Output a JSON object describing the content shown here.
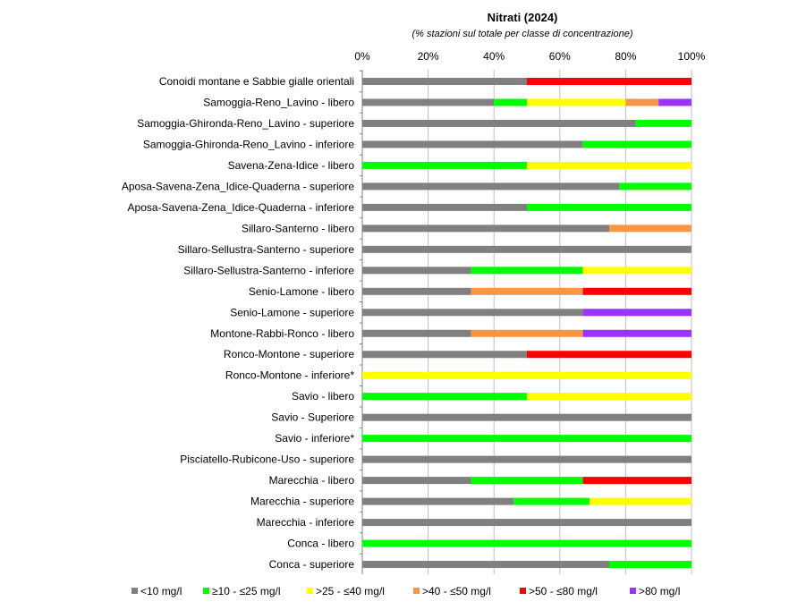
{
  "chart_data": {
    "type": "bar",
    "orientation": "horizontal",
    "stacked": true,
    "title": "Nitrati (2024)",
    "subtitle": "(% stazioni sul totale per classe di concentrazione)",
    "xlim": [
      0,
      100
    ],
    "x_ticks": [
      "0%",
      "20%",
      "40%",
      "60%",
      "80%",
      "100%"
    ],
    "x_tick_values": [
      0,
      20,
      40,
      60,
      80,
      100
    ],
    "legend_position": "bottom",
    "grid": "vertical",
    "categories": [
      "Conoidi montane e Sabbie gialle orientali",
      "Samoggia-Reno_Lavino - libero",
      "Samoggia-Ghironda-Reno_Lavino - superiore",
      "Samoggia-Ghironda-Reno_Lavino - inferiore",
      "Savena-Zena-Idice - libero",
      "Aposa-Savena-Zena_Idice-Quaderna - superiore",
      "Aposa-Savena-Zena_Idice-Quaderna - inferiore",
      "Sillaro-Santerno - libero",
      "Sillaro-Sellustra-Santerno - superiore",
      "Sillaro-Sellustra-Santerno - inferiore",
      "Senio-Lamone - libero",
      "Senio-Lamone - superiore",
      "Montone-Rabbi-Ronco - libero",
      "Ronco-Montone - superiore",
      "Ronco-Montone - inferiore*",
      "Savio - libero",
      "Savio - Superiore",
      "Savio - inferiore*",
      "Pisciatello-Rubicone-Uso - superiore",
      "Marecchia - libero",
      "Marecchia - superiore",
      "Marecchia - inferiore",
      "Conca - libero",
      "Conca - superiore"
    ],
    "series": [
      {
        "name": "<10 mg/l",
        "color": "#808080",
        "values": [
          50,
          40,
          83,
          67,
          0,
          78,
          50,
          75,
          100,
          33,
          33,
          67,
          33,
          50,
          0,
          0,
          100,
          0,
          100,
          33,
          46,
          100,
          0,
          75
        ]
      },
      {
        "name": "≥10 - ≤25 mg/l",
        "color": "#00ff00",
        "values": [
          0,
          10,
          17,
          33,
          50,
          22,
          50,
          0,
          0,
          34,
          0,
          0,
          0,
          0,
          0,
          50,
          0,
          100,
          0,
          34,
          23,
          0,
          100,
          25
        ]
      },
      {
        "name": ">25 - ≤40 mg/l",
        "color": "#ffff00",
        "values": [
          0,
          30,
          0,
          0,
          50,
          0,
          0,
          0,
          0,
          33,
          0,
          0,
          0,
          0,
          100,
          50,
          0,
          0,
          0,
          0,
          31,
          0,
          0,
          0
        ]
      },
      {
        "name": ">40 - ≤50 mg/l",
        "color": "#f79646",
        "values": [
          0,
          10,
          0,
          0,
          0,
          0,
          0,
          25,
          0,
          0,
          34,
          0,
          34,
          0,
          0,
          0,
          0,
          0,
          0,
          0,
          0,
          0,
          0,
          0
        ]
      },
      {
        "name": ">50 - ≤80 mg/l",
        "color": "#ff0000",
        "values": [
          50,
          0,
          0,
          0,
          0,
          0,
          0,
          0,
          0,
          0,
          33,
          0,
          0,
          50,
          0,
          0,
          0,
          0,
          0,
          33,
          0,
          0,
          0,
          0
        ]
      },
      {
        "name": ">80 mg/l",
        "color": "#9933ff",
        "values": [
          0,
          10,
          0,
          0,
          0,
          0,
          0,
          0,
          0,
          0,
          0,
          33,
          33,
          0,
          0,
          0,
          0,
          0,
          0,
          0,
          0,
          0,
          0,
          0
        ]
      }
    ]
  }
}
